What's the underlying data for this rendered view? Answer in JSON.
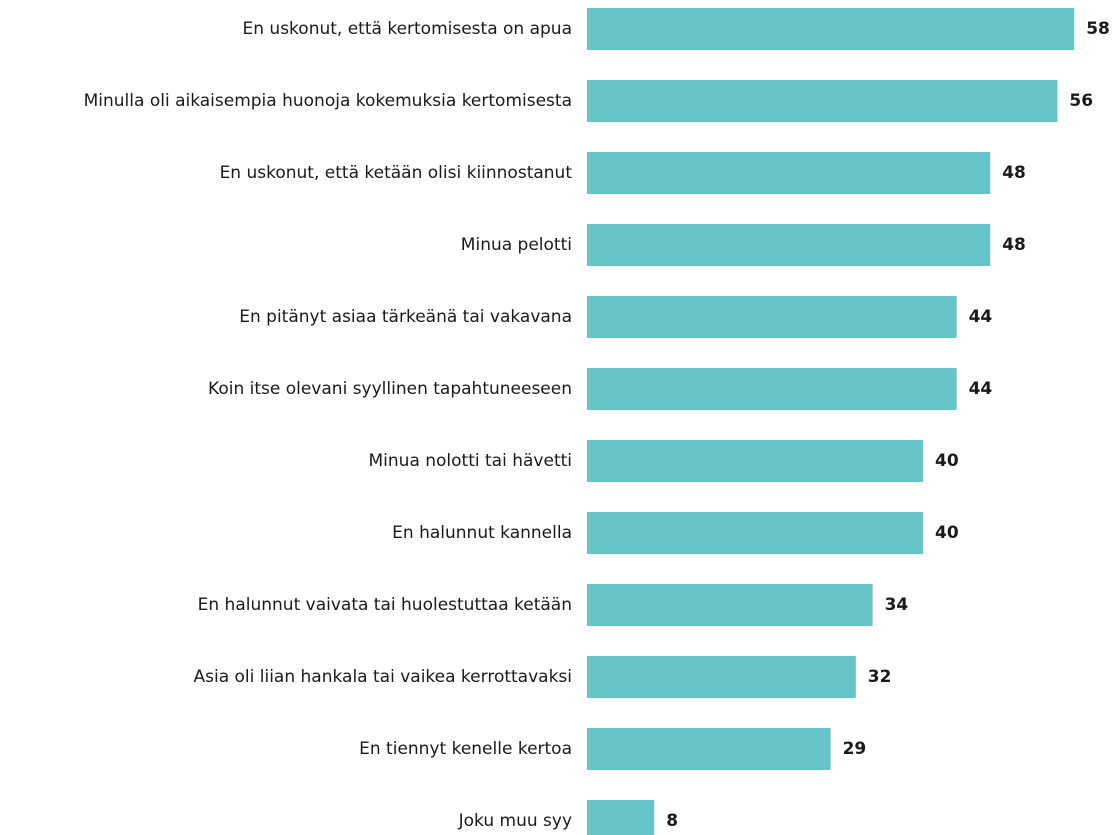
{
  "chart_data": {
    "type": "hbar",
    "categories": [
      "En uskonut, että kertomisesta on apua",
      "Minulla oli aikaisempia huonoja kokemuksia kertomisesta",
      "En uskonut, että ketään olisi kiinnostanut",
      "Minua pelotti",
      "En pitänyt asiaa tärkeänä tai vakavana",
      "Koin itse olevani syyllinen tapahtuneeseen",
      "Minua nolotti tai hävetti",
      "En halunnut kannella",
      "En halunnut vaivata tai huolestuttaa ketään",
      "Asia oli liian hankala tai vaikea kerrottavaksi",
      "En tiennyt kenelle kertoa",
      "Joku muu syy"
    ],
    "values": [
      58,
      56,
      48,
      48,
      44,
      44,
      40,
      40,
      34,
      32,
      29,
      8
    ],
    "color": "#66c4c8"
  }
}
